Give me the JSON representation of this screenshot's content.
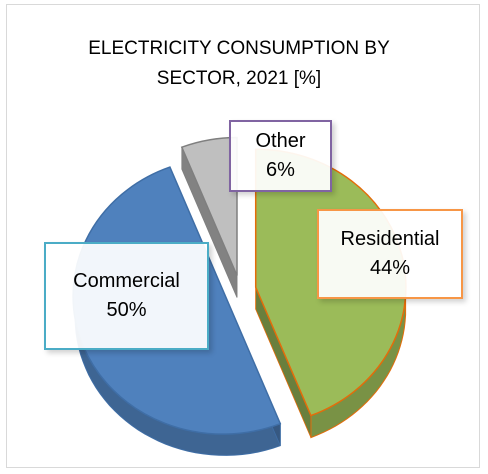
{
  "chart_data": {
    "type": "pie",
    "title": "ELECTRICITY CONSUMPTION BY SECTOR, 2021 [%]",
    "title_lines": [
      "ELECTRICITY CONSUMPTION BY",
      "SECTOR, 2021 [%]"
    ],
    "slices": [
      {
        "name": "Residential",
        "value": 44,
        "label": "44%",
        "color": "#9bbb59",
        "edge": "#e46c0a"
      },
      {
        "name": "Commercial",
        "value": 50,
        "label": "50%",
        "color": "#4f81bd",
        "edge": "#3f6ea6"
      },
      {
        "name": "Other",
        "value": 6,
        "label": "6%",
        "color": "#bfbfbf",
        "edge": "#7f7f7f"
      }
    ],
    "style": "3d-exploded",
    "callout_border_colors": {
      "Residential": "#f79646",
      "Commercial": "#4bacc6",
      "Other": "#8064a2"
    }
  }
}
